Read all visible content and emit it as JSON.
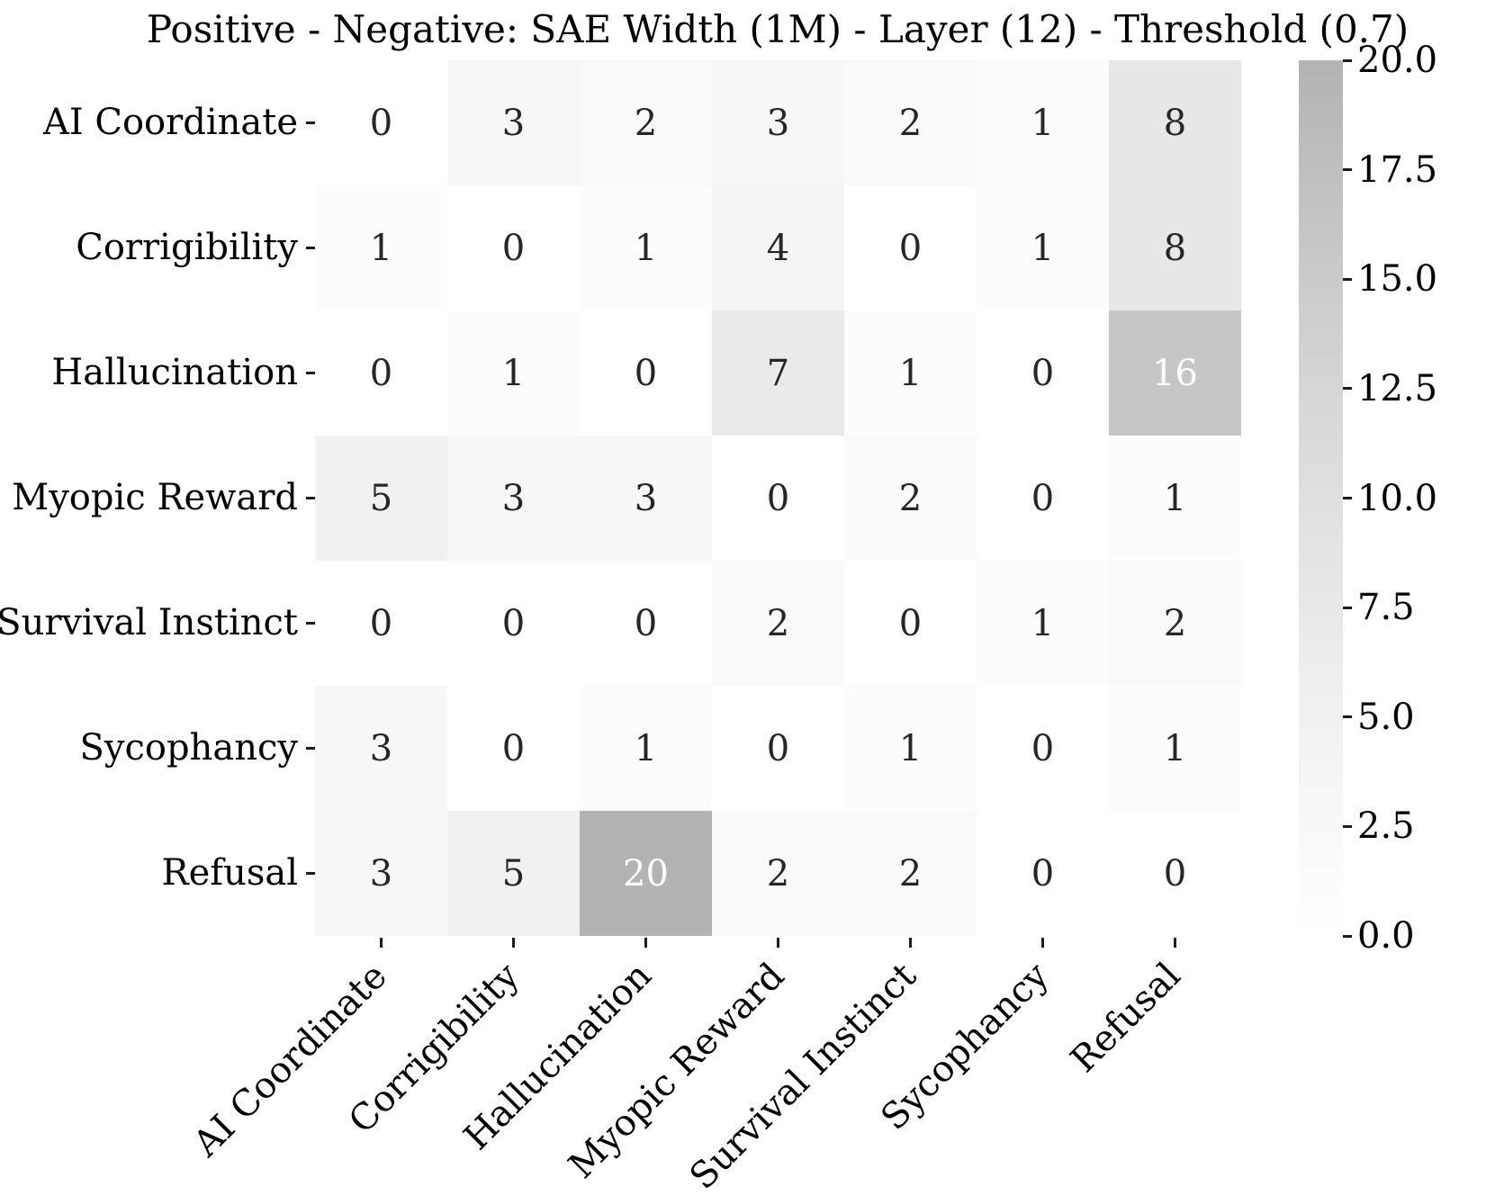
{
  "chart_data": {
    "type": "heatmap",
    "title": "Positive - Negative: SAE Width (1M) - Layer (12) - Threshold (0.7)",
    "row_labels": [
      "AI Coordinate",
      "Corrigibility",
      "Hallucination",
      "Myopic Reward",
      "Survival Instinct",
      "Sycophancy",
      "Refusal"
    ],
    "col_labels": [
      "AI Coordinate",
      "Corrigibility",
      "Hallucination",
      "Myopic Reward",
      "Survival Instinct",
      "Sycophancy",
      "Refusal"
    ],
    "values": [
      [
        0,
        3,
        2,
        3,
        2,
        1,
        8
      ],
      [
        1,
        0,
        1,
        4,
        0,
        1,
        8
      ],
      [
        0,
        1,
        0,
        7,
        1,
        0,
        16
      ],
      [
        5,
        3,
        3,
        0,
        2,
        0,
        1
      ],
      [
        0,
        0,
        0,
        2,
        0,
        1,
        2
      ],
      [
        3,
        0,
        1,
        0,
        1,
        0,
        1
      ],
      [
        3,
        5,
        20,
        2,
        2,
        0,
        0
      ]
    ],
    "vmin": 0,
    "vmax": 20,
    "grid": false,
    "colorbar": {
      "position": "right",
      "tick_labels": [
        "20.0",
        "17.5",
        "15.0",
        "12.5",
        "10.0",
        "7.5",
        "5.0",
        "2.5",
        "0.0"
      ]
    },
    "colors": {
      "background": "#ffffff",
      "annotation_dark": "#262626",
      "annotation_light": "#ffffff",
      "tick_color": "#1c1c1c",
      "cmap_stops": [
        [
          0,
          "#ffffff"
        ],
        [
          6,
          "#eeeeee"
        ],
        [
          12,
          "#d8d8d8"
        ],
        [
          18,
          "#bdbdbd"
        ],
        [
          20,
          "#b3b3b3"
        ]
      ],
      "white_text_min": 16
    }
  }
}
